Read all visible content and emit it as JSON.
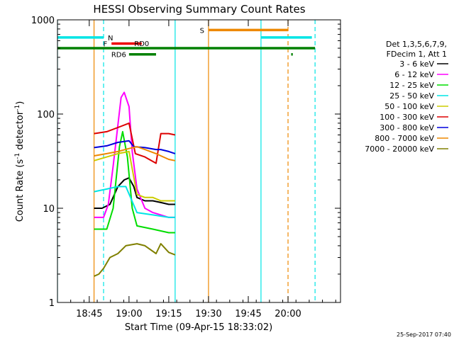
{
  "chart_data": {
    "type": "line",
    "title": "HESSI Observing Summary Count Rates",
    "xlabel": "Start Time (09-Apr-15 18:33:02)",
    "ylabel": "Count Rate (s",
    "ylabel_sup1": "-1",
    "ylabel_mid": " detector",
    "ylabel_sup2": "-1",
    "ylabel_end": ")",
    "yscale": "log",
    "ylim": [
      1,
      1000
    ],
    "xlim_minutes": [
      18.55,
      20.33
    ],
    "x_ticks": [
      {
        "label": "18:45",
        "t": 18.75
      },
      {
        "label": "19:00",
        "t": 19.0
      },
      {
        "label": "19:15",
        "t": 19.25
      },
      {
        "label": "19:30",
        "t": 19.5
      },
      {
        "label": "19:45",
        "t": 19.75
      },
      {
        "label": "20:00",
        "t": 20.0
      }
    ],
    "y_ticks": [
      {
        "label": "1",
        "v": 1
      },
      {
        "label": "10",
        "v": 10
      },
      {
        "label": "100",
        "v": 100
      },
      {
        "label": "1000",
        "v": 1000
      }
    ],
    "legend": {
      "placement": "right",
      "header": [
        "Det 1,3,5,6,7,9,",
        "FDecim 1, Att 1"
      ],
      "entries": [
        {
          "label": "3 - 6 keV",
          "color": "#000000"
        },
        {
          "label": "6 - 12 keV",
          "color": "#ff00ff"
        },
        {
          "label": "12 - 25 keV",
          "color": "#00dd00"
        },
        {
          "label": "25 - 50 keV",
          "color": "#00e5e5"
        },
        {
          "label": "50 - 100 keV",
          "color": "#cccc00"
        },
        {
          "label": "100 - 300 keV",
          "color": "#dd0000"
        },
        {
          "label": "300 - 800 keV",
          "color": "#0000dd"
        },
        {
          "label": "800 - 7000 keV",
          "color": "#ee8800"
        },
        {
          "label": "7000 - 20000 keV",
          "color": "#808000"
        }
      ]
    },
    "series": [
      {
        "name": "3 - 6 keV",
        "color": "#000000",
        "points": [
          [
            18.78,
            10
          ],
          [
            18.83,
            10
          ],
          [
            18.88,
            11
          ],
          [
            18.93,
            17
          ],
          [
            18.97,
            20
          ],
          [
            19.0,
            21
          ],
          [
            19.03,
            17
          ],
          [
            19.05,
            13
          ],
          [
            19.1,
            12
          ],
          [
            19.15,
            12
          ],
          [
            19.2,
            11.5
          ],
          [
            19.25,
            11
          ],
          [
            19.29,
            11
          ]
        ]
      },
      {
        "name": "6 - 12 keV",
        "color": "#ff00ff",
        "points": [
          [
            18.78,
            8
          ],
          [
            18.84,
            8
          ],
          [
            18.87,
            11
          ],
          [
            18.9,
            28
          ],
          [
            18.95,
            150
          ],
          [
            18.97,
            170
          ],
          [
            19.0,
            120
          ],
          [
            19.02,
            40
          ],
          [
            19.05,
            16
          ],
          [
            19.1,
            10
          ],
          [
            19.15,
            9
          ],
          [
            19.2,
            8.5
          ],
          [
            19.25,
            8
          ],
          [
            19.29,
            8
          ]
        ]
      },
      {
        "name": "12 - 25 keV",
        "color": "#00dd00",
        "points": [
          [
            18.78,
            6
          ],
          [
            18.86,
            6
          ],
          [
            18.9,
            10
          ],
          [
            18.94,
            45
          ],
          [
            18.96,
            65
          ],
          [
            18.99,
            35
          ],
          [
            19.02,
            10
          ],
          [
            19.05,
            6.5
          ],
          [
            19.15,
            6
          ],
          [
            19.25,
            5.5
          ],
          [
            19.29,
            5.5
          ]
        ]
      },
      {
        "name": "25 - 50 keV",
        "color": "#00e5e5",
        "points": [
          [
            18.78,
            15
          ],
          [
            18.86,
            16
          ],
          [
            18.93,
            17
          ],
          [
            18.98,
            17
          ],
          [
            19.05,
            9
          ],
          [
            19.15,
            8.5
          ],
          [
            19.25,
            8
          ],
          [
            19.29,
            8
          ]
        ]
      },
      {
        "name": "50 - 100 keV",
        "color": "#cccc00",
        "points": [
          [
            18.78,
            32
          ],
          [
            18.86,
            35
          ],
          [
            18.93,
            38
          ],
          [
            19.0,
            40
          ],
          [
            19.05,
            14
          ],
          [
            19.1,
            13
          ],
          [
            19.15,
            13
          ],
          [
            19.2,
            12
          ],
          [
            19.25,
            12
          ],
          [
            19.29,
            12
          ]
        ]
      },
      {
        "name": "100 - 300 keV",
        "color": "#dd0000",
        "points": [
          [
            18.78,
            62
          ],
          [
            18.86,
            65
          ],
          [
            18.93,
            72
          ],
          [
            19.0,
            80
          ],
          [
            19.04,
            38
          ],
          [
            19.1,
            35
          ],
          [
            19.17,
            30
          ],
          [
            19.2,
            62
          ],
          [
            19.25,
            62
          ],
          [
            19.29,
            60
          ]
        ]
      },
      {
        "name": "300 - 800 keV",
        "color": "#0000dd",
        "points": [
          [
            18.78,
            44
          ],
          [
            18.86,
            46
          ],
          [
            18.93,
            50
          ],
          [
            19.0,
            52
          ],
          [
            19.03,
            45
          ],
          [
            19.1,
            44
          ],
          [
            19.17,
            42
          ],
          [
            19.2,
            42
          ],
          [
            19.25,
            40
          ],
          [
            19.29,
            38
          ]
        ]
      },
      {
        "name": "800 - 7000 keV",
        "color": "#ee8800",
        "points": [
          [
            18.78,
            36
          ],
          [
            18.86,
            38
          ],
          [
            18.93,
            40
          ],
          [
            19.0,
            43
          ],
          [
            19.05,
            45
          ],
          [
            19.1,
            42
          ],
          [
            19.17,
            38
          ],
          [
            19.2,
            36
          ],
          [
            19.25,
            33
          ],
          [
            19.29,
            32
          ]
        ]
      },
      {
        "name": "7000 - 20000 keV",
        "color": "#808000",
        "points": [
          [
            18.78,
            1.9
          ],
          [
            18.81,
            2.0
          ],
          [
            18.84,
            2.3
          ],
          [
            18.88,
            3.0
          ],
          [
            18.93,
            3.3
          ],
          [
            18.98,
            4.0
          ],
          [
            19.05,
            4.2
          ],
          [
            19.1,
            4.0
          ],
          [
            19.17,
            3.3
          ],
          [
            19.2,
            4.2
          ],
          [
            19.25,
            3.4
          ],
          [
            19.29,
            3.2
          ]
        ]
      }
    ],
    "vertical_markers": [
      {
        "t": 18.55,
        "color": "#00e5e5",
        "dashed": false
      },
      {
        "t": 18.84,
        "color": "#00e5e5",
        "dashed": true
      },
      {
        "t": 18.78,
        "color": "#ee8800",
        "dashed": false
      },
      {
        "t": 19.29,
        "color": "#00e5e5",
        "dashed": false
      },
      {
        "t": 19.5,
        "color": "#ee8800",
        "dashed": false
      },
      {
        "t": 19.83,
        "color": "#00e5e5",
        "dashed": false
      },
      {
        "t": 20.0,
        "color": "#ee8800",
        "dashed": true
      },
      {
        "t": 20.17,
        "color": "#00e5e5",
        "dashed": true
      }
    ],
    "flag_bars": [
      {
        "label": "N",
        "color": "#00e5e5",
        "y": 650,
        "segments": [
          [
            18.55,
            18.84
          ],
          [
            19.83,
            20.15
          ]
        ]
      },
      {
        "label": "F",
        "color": "#ee0000",
        "y": 560,
        "segments": [
          [
            18.89,
            19.08
          ]
        ]
      },
      {
        "label": "RD0",
        "color": "#008000",
        "y": 500,
        "segments": [
          [
            18.55,
            20.17
          ]
        ]
      },
      {
        "label": "RD6",
        "color": "#008000",
        "y": 430,
        "segments": [
          [
            19.0,
            19.17
          ],
          [
            20.02,
            20.03
          ]
        ]
      },
      {
        "label": "S",
        "color": "#ee8800",
        "y": 780,
        "segments": [
          [
            19.5,
            20.0
          ]
        ]
      }
    ]
  },
  "timestamp": "25-Sep-2017 07:40"
}
